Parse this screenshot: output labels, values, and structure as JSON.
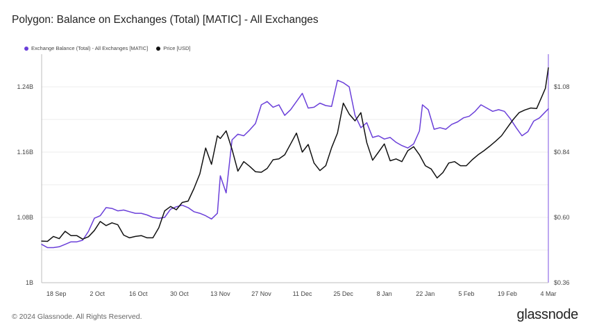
{
  "header": {
    "title": "Polygon: Balance on Exchanges (Total) [MATIC] - All Exchanges"
  },
  "footer": {
    "copyright": "© 2024 Glassnode. All Rights Reserved.",
    "brand": "glassnode"
  },
  "chart_data": {
    "type": "line",
    "title": "Polygon: Balance on Exchanges (Total) [MATIC] - All Exchanges",
    "xlabel": "",
    "ylabel": "",
    "grid": true,
    "legend_position": "top-left",
    "x_ticks": [
      "18 Sep",
      "2 Oct",
      "16 Oct",
      "30 Oct",
      "13 Nov",
      "27 Nov",
      "11 Dec",
      "25 Dec",
      "8 Jan",
      "22 Jan",
      "5 Feb",
      "19 Feb",
      "4 Mar"
    ],
    "y_left": {
      "ticks": [
        "1B",
        "1.08B",
        "1.16B",
        "1.24B"
      ],
      "range": [
        1.0,
        1.28
      ]
    },
    "y_right": {
      "ticks": [
        "$0.36",
        "$0.60",
        "$0.84",
        "$1.08"
      ],
      "range": [
        0.36,
        1.2
      ]
    },
    "series": [
      {
        "name": "Exchange Balance (Total) - All Exchanges [MATIC]",
        "axis": "left",
        "color": "#6a3fd9",
        "points": [
          [
            "13 Sep",
            1.047
          ],
          [
            "15 Sep",
            1.043
          ],
          [
            "17 Sep",
            1.043
          ],
          [
            "19 Sep",
            1.044
          ],
          [
            "21 Sep",
            1.047
          ],
          [
            "23 Sep",
            1.05
          ],
          [
            "25 Sep",
            1.05
          ],
          [
            "27 Sep",
            1.052
          ],
          [
            "29 Sep",
            1.063
          ],
          [
            "1 Oct",
            1.079
          ],
          [
            "3 Oct",
            1.082
          ],
          [
            "5 Oct",
            1.092
          ],
          [
            "7 Oct",
            1.091
          ],
          [
            "9 Oct",
            1.088
          ],
          [
            "11 Oct",
            1.089
          ],
          [
            "13 Oct",
            1.087
          ],
          [
            "15 Oct",
            1.085
          ],
          [
            "17 Oct",
            1.085
          ],
          [
            "19 Oct",
            1.083
          ],
          [
            "21 Oct",
            1.08
          ],
          [
            "23 Oct",
            1.079
          ],
          [
            "25 Oct",
            1.08
          ],
          [
            "27 Oct",
            1.09
          ],
          [
            "29 Oct",
            1.093
          ],
          [
            "31 Oct",
            1.095
          ],
          [
            "2 Nov",
            1.092
          ],
          [
            "4 Nov",
            1.087
          ],
          [
            "6 Nov",
            1.085
          ],
          [
            "8 Nov",
            1.082
          ],
          [
            "10 Nov",
            1.078
          ],
          [
            "12 Nov",
            1.085
          ],
          [
            "13 Nov",
            1.131
          ],
          [
            "15 Nov",
            1.11
          ],
          [
            "17 Nov",
            1.175
          ],
          [
            "19 Nov",
            1.182
          ],
          [
            "21 Nov",
            1.18
          ],
          [
            "23 Nov",
            1.187
          ],
          [
            "25 Nov",
            1.195
          ],
          [
            "27 Nov",
            1.218
          ],
          [
            "29 Nov",
            1.222
          ],
          [
            "1 Dec",
            1.215
          ],
          [
            "3 Dec",
            1.218
          ],
          [
            "5 Dec",
            1.205
          ],
          [
            "7 Dec",
            1.212
          ],
          [
            "9 Dec",
            1.222
          ],
          [
            "11 Dec",
            1.232
          ],
          [
            "13 Dec",
            1.214
          ],
          [
            "15 Dec",
            1.215
          ],
          [
            "17 Dec",
            1.22
          ],
          [
            "19 Dec",
            1.217
          ],
          [
            "21 Dec",
            1.216
          ],
          [
            "23 Dec",
            1.248
          ],
          [
            "25 Dec",
            1.245
          ],
          [
            "27 Dec",
            1.24
          ],
          [
            "29 Dec",
            1.205
          ],
          [
            "31 Dec",
            1.19
          ],
          [
            "2 Jan",
            1.196
          ],
          [
            "4 Jan",
            1.178
          ],
          [
            "6 Jan",
            1.18
          ],
          [
            "8 Jan",
            1.176
          ],
          [
            "10 Jan",
            1.178
          ],
          [
            "12 Jan",
            1.172
          ],
          [
            "14 Jan",
            1.168
          ],
          [
            "16 Jan",
            1.165
          ],
          [
            "18 Jan",
            1.17
          ],
          [
            "20 Jan",
            1.186
          ],
          [
            "21 Jan",
            1.218
          ],
          [
            "23 Jan",
            1.212
          ],
          [
            "25 Jan",
            1.188
          ],
          [
            "27 Jan",
            1.19
          ],
          [
            "29 Jan",
            1.188
          ],
          [
            "31 Jan",
            1.194
          ],
          [
            "2 Feb",
            1.197
          ],
          [
            "4 Feb",
            1.202
          ],
          [
            "6 Feb",
            1.204
          ],
          [
            "8 Feb",
            1.21
          ],
          [
            "10 Feb",
            1.218
          ],
          [
            "12 Feb",
            1.214
          ],
          [
            "14 Feb",
            1.21
          ],
          [
            "16 Feb",
            1.212
          ],
          [
            "18 Feb",
            1.21
          ],
          [
            "20 Feb",
            1.201
          ],
          [
            "22 Feb",
            1.19
          ],
          [
            "24 Feb",
            1.18
          ],
          [
            "26 Feb",
            1.185
          ],
          [
            "28 Feb",
            1.198
          ],
          [
            "1 Mar",
            1.202
          ],
          [
            "4 Mar",
            1.213
          ]
        ]
      },
      {
        "name": "Price [USD]",
        "axis": "right",
        "color": "#111111",
        "points": [
          [
            "13 Sep",
            0.513
          ],
          [
            "15 Sep",
            0.512
          ],
          [
            "17 Sep",
            0.53
          ],
          [
            "19 Sep",
            0.522
          ],
          [
            "21 Sep",
            0.549
          ],
          [
            "23 Sep",
            0.533
          ],
          [
            "25 Sep",
            0.533
          ],
          [
            "27 Sep",
            0.52
          ],
          [
            "29 Sep",
            0.529
          ],
          [
            "1 Oct",
            0.552
          ],
          [
            "3 Oct",
            0.585
          ],
          [
            "5 Oct",
            0.57
          ],
          [
            "7 Oct",
            0.58
          ],
          [
            "9 Oct",
            0.573
          ],
          [
            "11 Oct",
            0.535
          ],
          [
            "13 Oct",
            0.525
          ],
          [
            "15 Oct",
            0.53
          ],
          [
            "17 Oct",
            0.533
          ],
          [
            "19 Oct",
            0.525
          ],
          [
            "21 Oct",
            0.525
          ],
          [
            "23 Oct",
            0.562
          ],
          [
            "25 Oct",
            0.624
          ],
          [
            "27 Oct",
            0.64
          ],
          [
            "29 Oct",
            0.628
          ],
          [
            "31 Oct",
            0.655
          ],
          [
            "2 Nov",
            0.66
          ],
          [
            "4 Nov",
            0.706
          ],
          [
            "6 Nov",
            0.76
          ],
          [
            "8 Nov",
            0.855
          ],
          [
            "10 Nov",
            0.795
          ],
          [
            "12 Nov",
            0.9
          ],
          [
            "13 Nov",
            0.89
          ],
          [
            "15 Nov",
            0.918
          ],
          [
            "17 Nov",
            0.85
          ],
          [
            "19 Nov",
            0.77
          ],
          [
            "21 Nov",
            0.805
          ],
          [
            "23 Nov",
            0.788
          ],
          [
            "25 Nov",
            0.768
          ],
          [
            "27 Nov",
            0.766
          ],
          [
            "29 Nov",
            0.78
          ],
          [
            "1 Dec",
            0.812
          ],
          [
            "3 Dec",
            0.815
          ],
          [
            "5 Dec",
            0.83
          ],
          [
            "7 Dec",
            0.87
          ],
          [
            "9 Dec",
            0.91
          ],
          [
            "11 Dec",
            0.84
          ],
          [
            "13 Dec",
            0.868
          ],
          [
            "15 Dec",
            0.8
          ],
          [
            "17 Dec",
            0.772
          ],
          [
            "19 Dec",
            0.79
          ],
          [
            "21 Dec",
            0.856
          ],
          [
            "23 Dec",
            0.91
          ],
          [
            "25 Dec",
            1.02
          ],
          [
            "27 Dec",
            0.98
          ],
          [
            "29 Dec",
            0.955
          ],
          [
            "31 Dec",
            0.985
          ],
          [
            "2 Jan",
            0.875
          ],
          [
            "4 Jan",
            0.81
          ],
          [
            "6 Jan",
            0.84
          ],
          [
            "8 Jan",
            0.87
          ],
          [
            "10 Jan",
            0.808
          ],
          [
            "12 Jan",
            0.815
          ],
          [
            "14 Jan",
            0.805
          ],
          [
            "16 Jan",
            0.845
          ],
          [
            "18 Jan",
            0.86
          ],
          [
            "20 Jan",
            0.83
          ],
          [
            "22 Jan",
            0.79
          ],
          [
            "24 Jan",
            0.778
          ],
          [
            "26 Jan",
            0.745
          ],
          [
            "28 Jan",
            0.765
          ],
          [
            "30 Jan",
            0.8
          ],
          [
            "1 Feb",
            0.805
          ],
          [
            "3 Feb",
            0.79
          ],
          [
            "5 Feb",
            0.79
          ],
          [
            "7 Feb",
            0.812
          ],
          [
            "9 Feb",
            0.83
          ],
          [
            "11 Feb",
            0.845
          ],
          [
            "13 Feb",
            0.862
          ],
          [
            "15 Feb",
            0.88
          ],
          [
            "17 Feb",
            0.9
          ],
          [
            "19 Feb",
            0.93
          ],
          [
            "21 Feb",
            0.96
          ],
          [
            "23 Feb",
            0.985
          ],
          [
            "25 Feb",
            0.995
          ],
          [
            "27 Feb",
            1.002
          ],
          [
            "29 Feb",
            1.0
          ],
          [
            "2 Mar",
            1.05
          ],
          [
            "3 Mar",
            1.075
          ],
          [
            "4 Mar",
            1.15
          ]
        ]
      }
    ]
  }
}
